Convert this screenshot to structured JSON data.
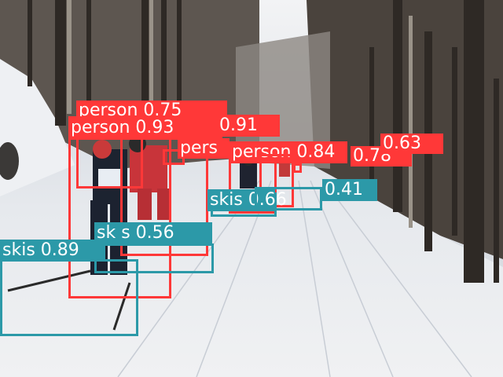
{
  "image": {
    "description_free": true,
    "palette": {
      "snow": "#e9ecf0",
      "snow_shadow": "#c9ced6",
      "sky": "#e8eaee",
      "trees_dark": "#3a3530",
      "trees_mid": "#6b625a"
    }
  },
  "colors": {
    "person": "#ff3838",
    "skis": "#2c99a8"
  },
  "detections": [
    {
      "label": "person 0.75",
      "class": "person"
    },
    {
      "label": "person 0.93",
      "class": "person"
    },
    {
      "label": "0.91",
      "class": "person"
    },
    {
      "label": "pers",
      "class": "person"
    },
    {
      "label": "person 0.84",
      "class": "person"
    },
    {
      "label": "0.78",
      "class": "person"
    },
    {
      "label": "0.63",
      "class": "person"
    },
    {
      "label": "skis 0.89",
      "class": "skis"
    },
    {
      "label": "sk s 0.56",
      "class": "skis"
    },
    {
      "label": "skis 0.66",
      "class": "skis"
    },
    {
      "label": "0.41",
      "class": "skis"
    }
  ]
}
